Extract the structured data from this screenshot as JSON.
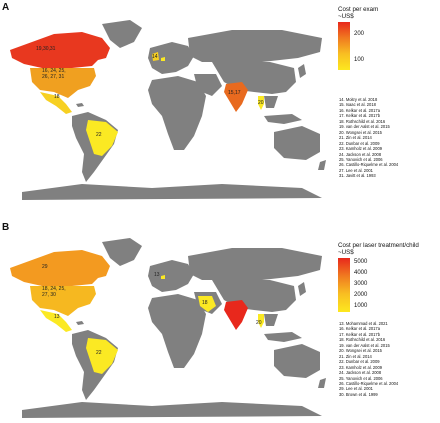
{
  "panels": [
    {
      "label": "A",
      "legend_title": "Cost per exam\n~US$",
      "scale_ticks": [
        "200",
        "100"
      ],
      "references": [
        "14. Moitry et al. 2018",
        "15. Isaac et al. 2018",
        "16. Kelkar et al. 2017a",
        "17. Kelkar et al. 2017b",
        "18. Rothschild et al. 2016",
        "19. van der Aalst et al. 2015",
        "20. Wongsei et al. 2015",
        "21. Zin et al. 2014",
        "22. Dunbar et al. 2009",
        "23. Kamholz et al. 2009",
        "24. Jackson et al. 2008",
        "25. Yanovich et al. 2006",
        "26. Castillo-Riquelme et al. 2004",
        "27. Lee et al. 2001",
        "31. Javitt et al. 1993"
      ],
      "map_labels": [
        "19,30,31",
        "16, 24, 25,",
        "26, 27, 31",
        "18",
        "14",
        "22",
        "15,17",
        "20"
      ]
    },
    {
      "label": "B",
      "legend_title": "Cost per laser treatment/child\n~US$",
      "scale_ticks": [
        "5000",
        "4000",
        "3000",
        "2000",
        "1000"
      ],
      "references": [
        "13. Mohammad et al. 2021",
        "16. Kelkar et al. 2017a",
        "17. Kelkar et al. 2017b",
        "18. Rothschild et al. 2016",
        "19. van der Aalst et al. 2015",
        "20. Wongsei et al. 2015",
        "21. Zin et al. 2014",
        "22. Dunbar et al. 2009",
        "23. Kamholz et al. 2009",
        "24. Jackson et al. 2008",
        "25. Yanovich et al. 2006",
        "26. Castillo-Riquelme et al. 2004",
        "29. Lee et al. 2001",
        "30. Brown et al. 1999"
      ],
      "map_labels": [
        "29",
        "18, 24, 25,",
        "27, 30",
        "13",
        "13",
        "22",
        "18",
        "20"
      ]
    }
  ]
}
